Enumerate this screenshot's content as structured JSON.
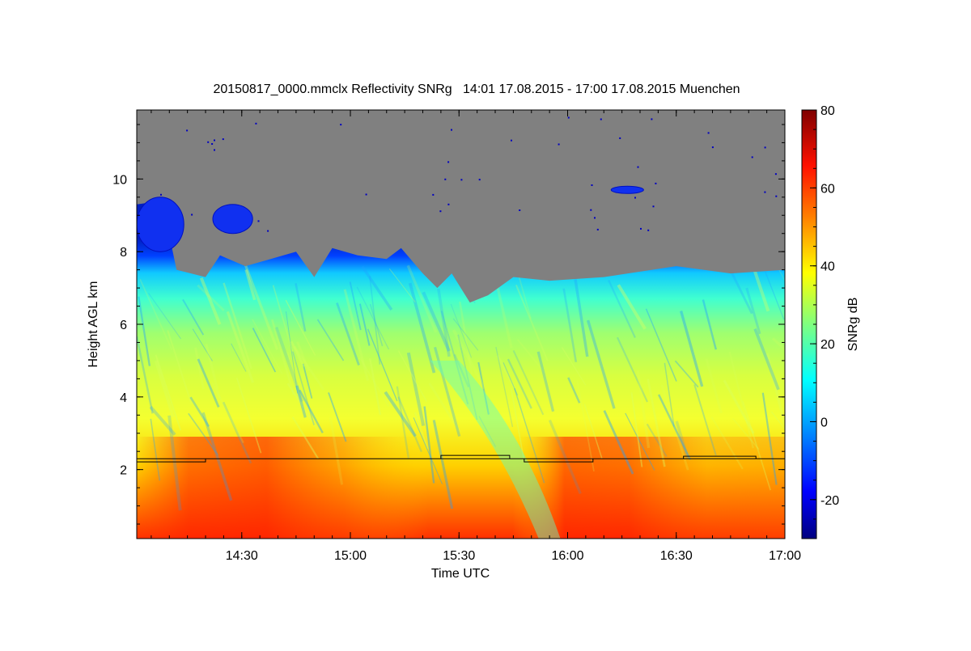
{
  "chart_data": {
    "type": "heatmap",
    "title": "20150817_0000.mmclx Reflectivity SNRg   14:01 17.08.2015 - 17:00 17.08.2015 Muenchen",
    "xlabel": "Time UTC",
    "ylabel": "Height AGL km",
    "xlim": [
      "14:01",
      "17:00"
    ],
    "ylim": [
      0.1,
      11.9
    ],
    "x_ticks": [
      "14:30",
      "15:00",
      "15:30",
      "16:00",
      "16:30",
      "17:00"
    ],
    "y_ticks": [
      2,
      4,
      6,
      8,
      10
    ],
    "colorbar": {
      "label": "SNRg dB",
      "range": [
        -30,
        80
      ],
      "ticks": [
        -20,
        0,
        20,
        40,
        60,
        80
      ],
      "colormap": [
        "#00007f",
        "#0000ff",
        "#00bfff",
        "#00ffff",
        "#7fff7f",
        "#ffff00",
        "#ff7f00",
        "#ff0000",
        "#7f0000"
      ]
    },
    "no_signal_color": "#808080",
    "cloud_top_km": [
      {
        "t": "14:01",
        "h": 9.3
      },
      {
        "t": "14:08",
        "h": 9.4
      },
      {
        "t": "14:12",
        "h": 7.5
      },
      {
        "t": "14:20",
        "h": 7.3
      },
      {
        "t": "14:24",
        "h": 7.9
      },
      {
        "t": "14:31",
        "h": 7.6
      },
      {
        "t": "14:38",
        "h": 7.8
      },
      {
        "t": "14:45",
        "h": 8.0
      },
      {
        "t": "14:50",
        "h": 7.3
      },
      {
        "t": "14:55",
        "h": 8.1
      },
      {
        "t": "15:02",
        "h": 7.9
      },
      {
        "t": "15:10",
        "h": 7.8
      },
      {
        "t": "15:14",
        "h": 8.1
      },
      {
        "t": "15:20",
        "h": 7.4
      },
      {
        "t": "15:24",
        "h": 7.0
      },
      {
        "t": "15:28",
        "h": 7.4
      },
      {
        "t": "15:33",
        "h": 6.6
      },
      {
        "t": "15:38",
        "h": 6.8
      },
      {
        "t": "15:45",
        "h": 7.3
      },
      {
        "t": "15:55",
        "h": 7.2
      },
      {
        "t": "16:10",
        "h": 7.3
      },
      {
        "t": "16:30",
        "h": 7.6
      },
      {
        "t": "16:45",
        "h": 7.4
      },
      {
        "t": "17:00",
        "h": 7.5
      }
    ],
    "upper_cloud_patches": [
      {
        "t_start": "14:01",
        "t_end": "14:14",
        "h_bottom": 8.0,
        "h_top": 9.5
      },
      {
        "t_start": "14:22",
        "t_end": "14:33",
        "h_bottom": 8.5,
        "h_top": 9.3
      },
      {
        "t_start": "16:12",
        "t_end": "16:21",
        "h_bottom": 9.6,
        "h_top": 9.8
      }
    ],
    "boundary_layer_line_km": 2.3
  }
}
